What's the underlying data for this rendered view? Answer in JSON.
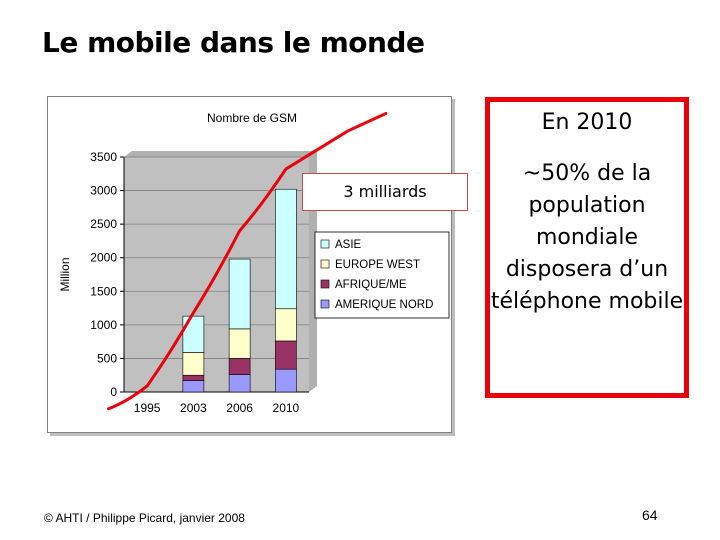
{
  "slide": {
    "title": "Le mobile dans le monde",
    "footer": "© AHTI / Philippe Picard, janvier 2008",
    "page_number": "64"
  },
  "callout": {
    "heading": "En 2010",
    "body": "~50% de la population mondiale disposera d’un téléphone mobile"
  },
  "annotation": {
    "text": "3 milliards"
  },
  "colors": {
    "asie": "#ccffff",
    "europe_west": "#ffffcc",
    "afrique_me": "#993366",
    "amerique_nord": "#9999ff",
    "trend_line": "#e8000b",
    "callout_border": "#e8000b",
    "plot_background": "#c0c0c0"
  },
  "chart_data": {
    "type": "bar",
    "stacked": true,
    "title": "Nombre de GSM",
    "ylabel": "Million",
    "xlabel": "",
    "ylim": [
      0,
      3500
    ],
    "yticks": [
      0,
      500,
      1000,
      1500,
      2000,
      2500,
      3000,
      3500
    ],
    "categories": [
      "1995",
      "2003",
      "2006",
      "2010"
    ],
    "series": [
      {
        "name": "AMERIQUE NORD",
        "key": "amerique_nord",
        "values": [
          0,
          170,
          260,
          340
        ]
      },
      {
        "name": "AFRIQUE/ME",
        "key": "afrique_me",
        "values": [
          0,
          80,
          240,
          420
        ]
      },
      {
        "name": "EUROPE WEST",
        "key": "europe_west",
        "values": [
          0,
          340,
          440,
          480
        ]
      },
      {
        "name": "ASIE",
        "key": "asie",
        "values": [
          0,
          540,
          1040,
          1780
        ]
      }
    ],
    "legend_order": [
      "ASIE",
      "EUROPE WEST",
      "AFRIQUE/ME",
      "AMERIQUE NORD"
    ],
    "legend_position": "right",
    "trend_line_x": [
      "1990",
      "1995",
      "2003",
      "2006",
      "2010"
    ],
    "trend_line_y": [
      -250,
      90,
      1180,
      2400,
      3320
    ]
  }
}
